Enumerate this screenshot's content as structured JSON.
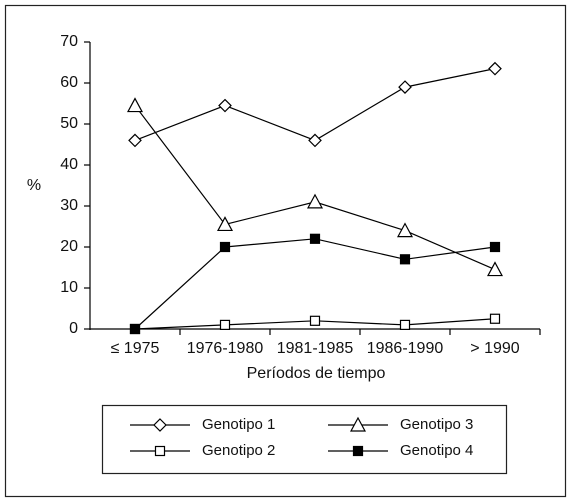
{
  "chart_data": {
    "type": "line",
    "x_label": "Períodos de tiempo",
    "y_label": "%",
    "categories": [
      "≤ 1975",
      "1976-1980",
      "1981-1985",
      "1986-1990",
      "> 1990"
    ],
    "ylim": [
      0,
      70
    ],
    "yticks": [
      0,
      10,
      20,
      30,
      40,
      50,
      60,
      70
    ],
    "series": [
      {
        "name": "Genotipo 1",
        "color": "#000000",
        "marker": "diamond",
        "filled": false,
        "values": [
          46,
          54.5,
          46,
          59,
          63.5
        ]
      },
      {
        "name": "Genotipo 3",
        "color": "#000000",
        "marker": "triangle",
        "filled": false,
        "values": [
          54.5,
          25.5,
          31,
          24,
          14.5
        ]
      },
      {
        "name": "Genotipo 2",
        "color": "#000000",
        "marker": "square",
        "filled": false,
        "values": [
          0,
          1,
          2,
          1,
          2.5
        ]
      },
      {
        "name": "Genotipo 4",
        "color": "#000000",
        "marker": "square",
        "filled": true,
        "values": [
          0,
          20,
          22,
          17,
          20
        ]
      }
    ]
  }
}
